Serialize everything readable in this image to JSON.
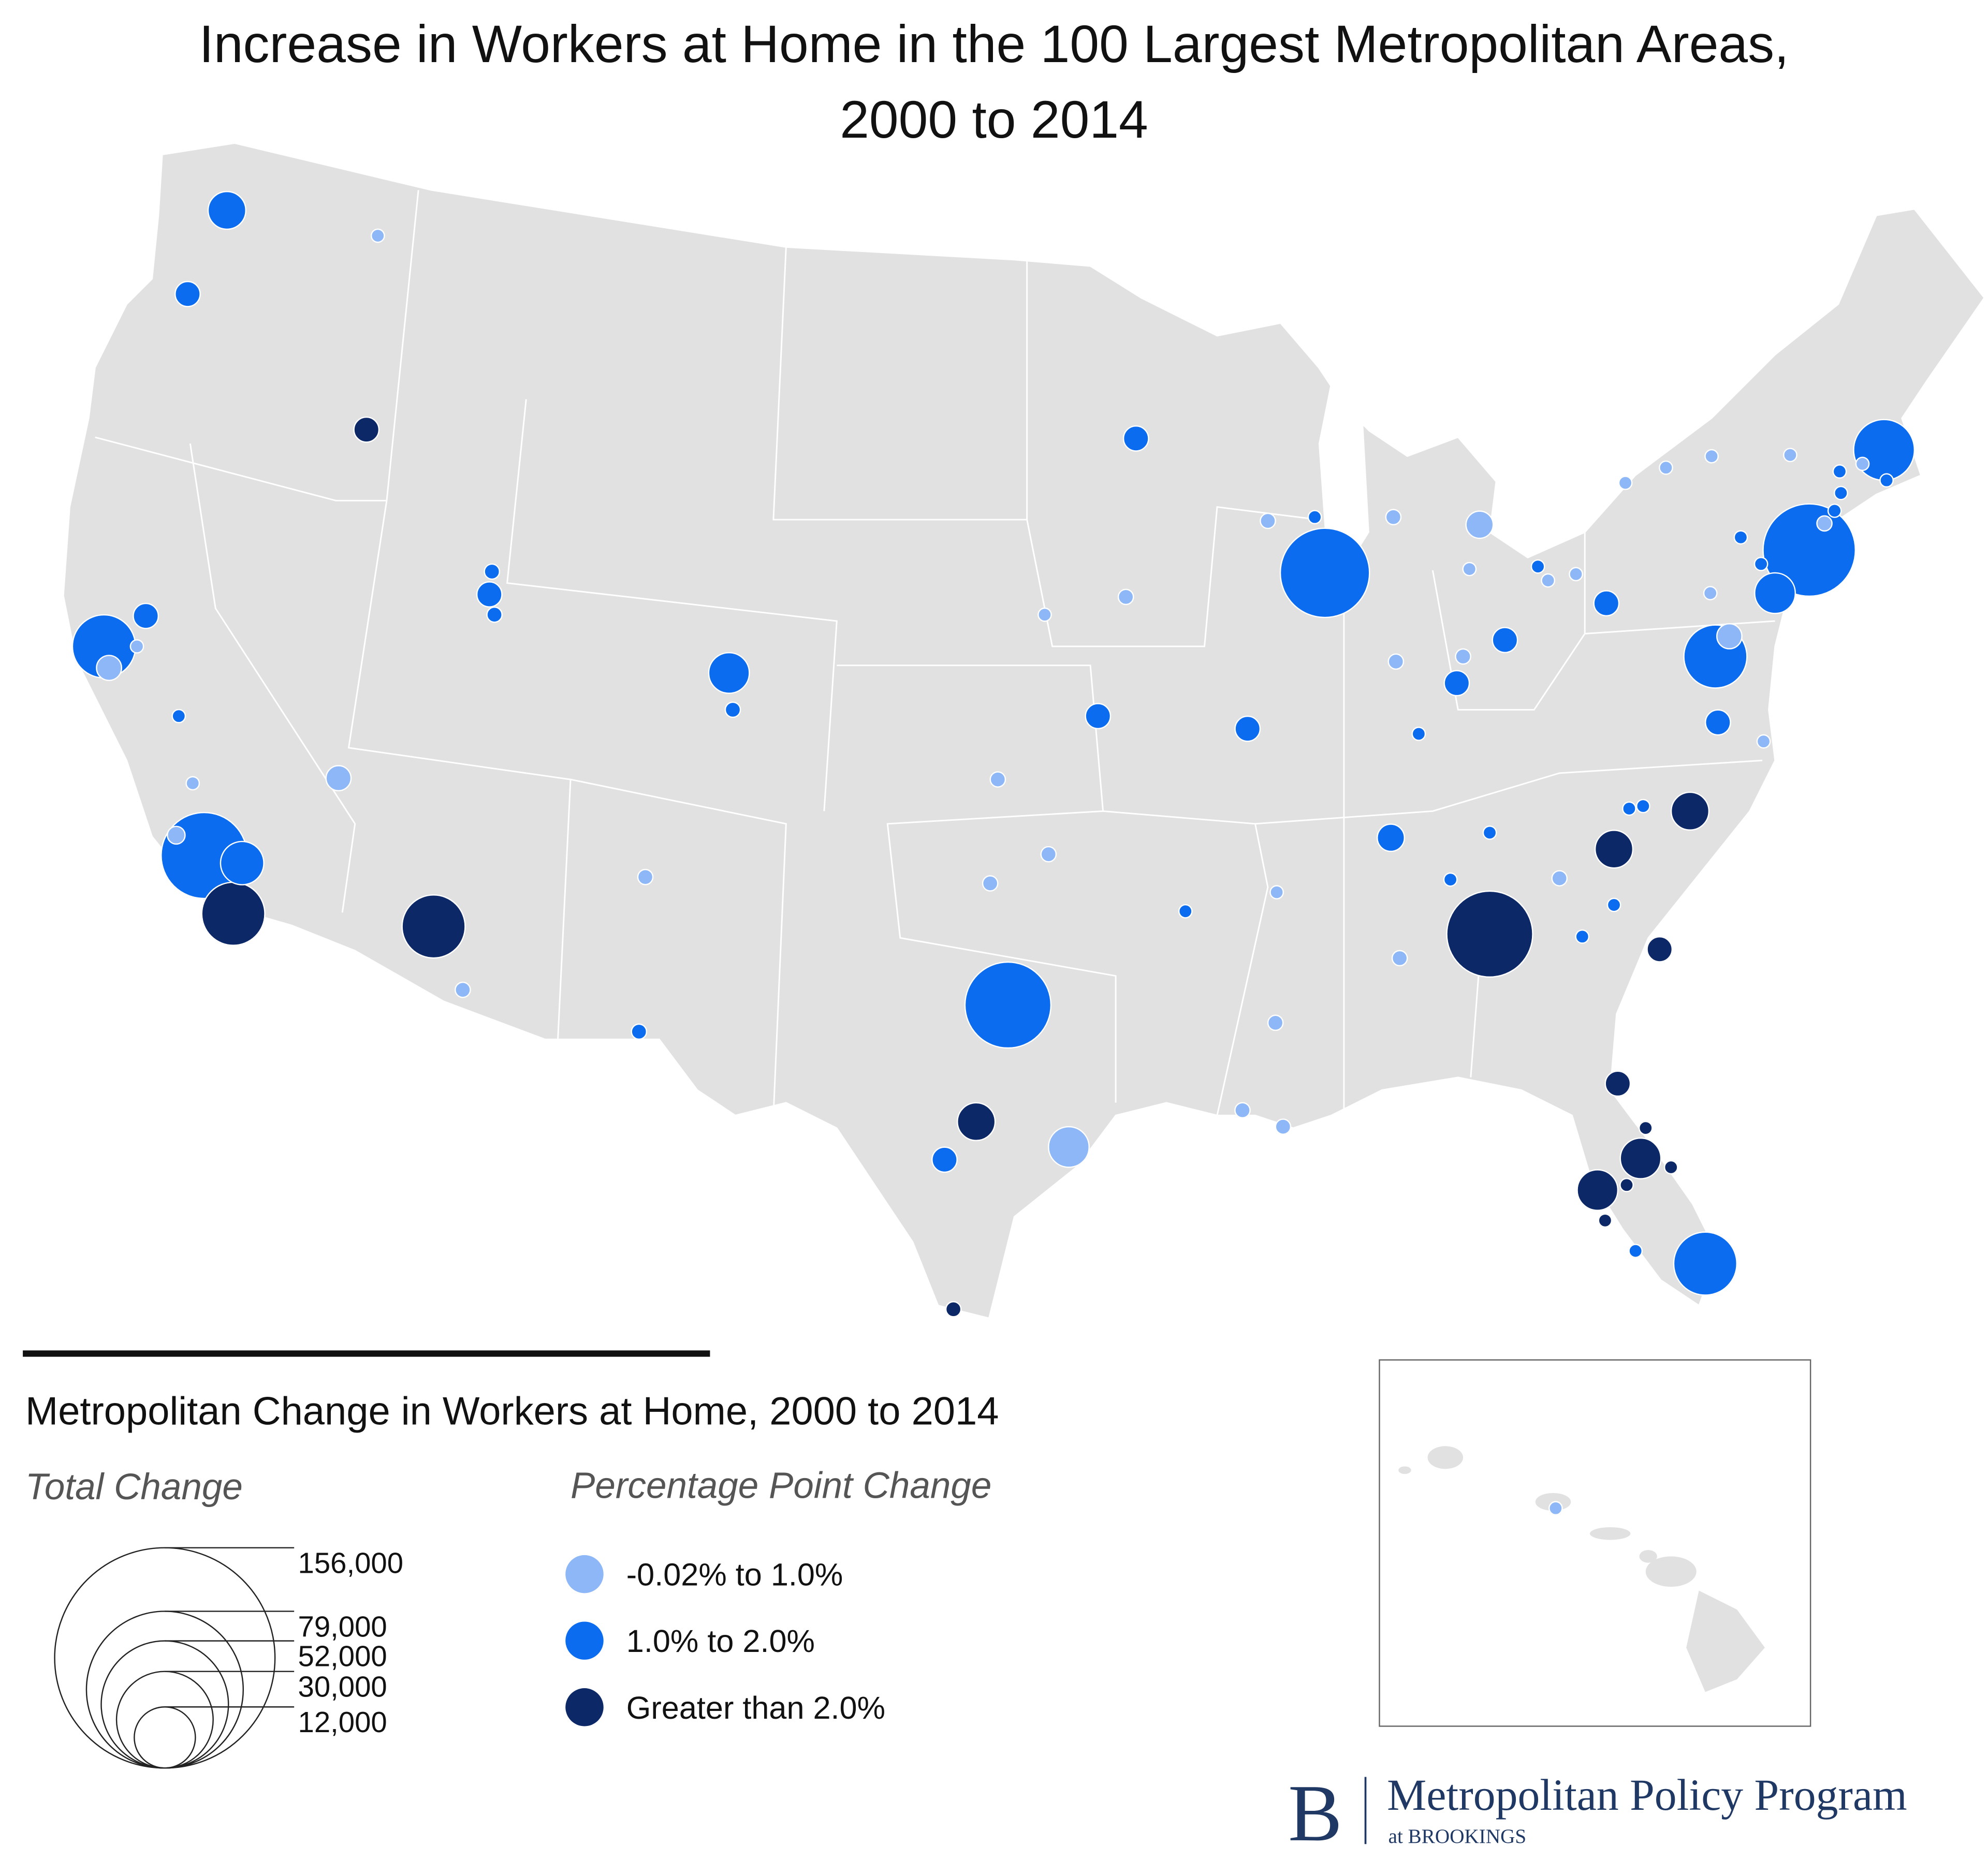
{
  "chart_data": {
    "type": "bubble-map",
    "title": "Increase in Workers at Home in the 100 Largest Metropolitan Areas,\n2000 to 2014",
    "legend_title": "Metropolitan Change in Workers at Home, 2000 to 2014",
    "size_title": "Total Change",
    "color_title": "Percentage Point Change",
    "size_legend": [
      {
        "value": 156000,
        "label": "156,000"
      },
      {
        "value": 79000,
        "label": "79,000"
      },
      {
        "value": 52000,
        "label": "52,000"
      },
      {
        "value": 30000,
        "label": "30,000"
      },
      {
        "value": 12000,
        "label": "12,000"
      }
    ],
    "series": [
      {
        "name": "-0.02% to 1.0%",
        "color": "#8db7f7",
        "values": [
          3000,
          11000,
          3000,
          3000,
          5500,
          11000,
          4000,
          4000,
          3000,
          4000,
          4000,
          4000,
          4000,
          29000,
          4000,
          4000,
          13000,
          3000,
          4000,
          4000,
          3000,
          3000,
          3000,
          3000,
          3000,
          3000,
          3000,
          4000,
          3000,
          11000,
          3000,
          4000,
          3000,
          4000,
          4000,
          4000,
          4000,
          3000
        ]
      },
      {
        "name": "1.0% to 2.0%",
        "color": "#0b6cf0",
        "values": [
          25000,
          11000,
          70000,
          11000,
          3000,
          130000,
          33000,
          11000,
          4000,
          4000,
          29000,
          4000,
          4000,
          11000,
          11000,
          130000,
          11000,
          140000,
          3000,
          11000,
          11000,
          11000,
          3000,
          3000,
          11000,
          65000,
          3000,
          3000,
          3000,
          3000,
          150000,
          3000,
          29000,
          3000,
          70000,
          11000,
          3000,
          3000,
          3000,
          3000,
          3000,
          13000,
          3000,
          3000,
          3000,
          70000
        ]
      },
      {
        "name": "Greater than 2.0%",
        "color": "#0c2866",
        "values": [
          11000,
          70000,
          70000,
          25000,
          4000,
          25000,
          25000,
          11000,
          130000,
          11000,
          29000,
          3000,
          3000,
          3000,
          29000,
          3000
        ]
      }
    ],
    "credit": {
      "mark": "B",
      "name": "Metropolitan Policy Program",
      "org": "at BROOKINGS"
    }
  }
}
